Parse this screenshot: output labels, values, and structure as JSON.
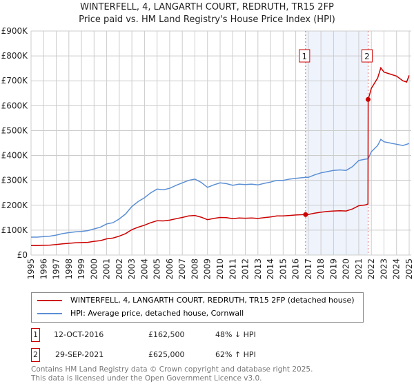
{
  "chart_data": {
    "type": "line",
    "title": "WINTERFELL, 4, LANGARTH COURT, REDRUTH, TR15 2FP",
    "subtitle": "Price paid vs. HM Land Registry's House Price Index (HPI)",
    "xlim": [
      1995,
      2025
    ],
    "ylim": [
      0,
      900000
    ],
    "x_ticks": [
      "1995",
      "1996",
      "1997",
      "1998",
      "1999",
      "2000",
      "2001",
      "2002",
      "2003",
      "2004",
      "2005",
      "2006",
      "2007",
      "2008",
      "2009",
      "2010",
      "2011",
      "2012",
      "2013",
      "2014",
      "2015",
      "2016",
      "2017",
      "2018",
      "2019",
      "2020",
      "2021",
      "2022",
      "2023",
      "2024",
      "2025"
    ],
    "y_ticks": [
      {
        "v": 0,
        "label": "£0"
      },
      {
        "v": 100000,
        "label": "£100K"
      },
      {
        "v": 200000,
        "label": "£200K"
      },
      {
        "v": 300000,
        "label": "£300K"
      },
      {
        "v": 400000,
        "label": "£400K"
      },
      {
        "v": 500000,
        "label": "£500K"
      },
      {
        "v": 600000,
        "label": "£600K"
      },
      {
        "v": 700000,
        "label": "£700K"
      },
      {
        "v": 800000,
        "label": "£800K"
      },
      {
        "v": 900000,
        "label": "£900K"
      }
    ],
    "grid": true,
    "shaded_range": [
      2016.78,
      2021.74
    ],
    "series": [
      {
        "name": "WINTERFELL, 4, LANGARTH COURT, REDRUTH, TR15 2FP (detached house)",
        "color": "#cc0000",
        "x": [
          1995,
          1995.5,
          1996,
          1996.5,
          1997,
          1997.5,
          1998,
          1998.5,
          1999,
          1999.5,
          2000,
          2000.5,
          2001,
          2001.5,
          2002,
          2002.5,
          2003,
          2003.5,
          2004,
          2004.5,
          2005,
          2005.5,
          2006,
          2006.5,
          2007,
          2007.5,
          2008,
          2008.5,
          2009,
          2009.5,
          2010,
          2010.5,
          2011,
          2011.5,
          2012,
          2012.5,
          2013,
          2013.5,
          2014,
          2014.5,
          2015,
          2015.5,
          2016,
          2016.78,
          2017,
          2017.5,
          2018,
          2018.5,
          2019,
          2019.5,
          2020,
          2020.5,
          2021,
          2021.5,
          2021.73,
          2021.75,
          2022,
          2022.5,
          2022.75,
          2023,
          2023.5,
          2024,
          2024.5,
          2024.8,
          2025
        ],
        "y": [
          38000,
          38000,
          39000,
          40000,
          42000,
          45000,
          47000,
          49000,
          50000,
          51000,
          55000,
          58000,
          65000,
          68000,
          76000,
          86000,
          102000,
          112000,
          120000,
          130000,
          138000,
          137000,
          140000,
          146000,
          151000,
          157000,
          159000,
          152000,
          142000,
          147000,
          151000,
          150000,
          146000,
          149000,
          148000,
          149000,
          147000,
          150000,
          153000,
          157000,
          157000,
          159000,
          161000,
          162500,
          163000,
          168000,
          172000,
          175000,
          177000,
          178000,
          177000,
          185000,
          198000,
          201000,
          205000,
          625000,
          670000,
          711000,
          752000,
          735000,
          727000,
          719000,
          700000,
          695000,
          722000
        ]
      },
      {
        "name": "HPI: Average price, detached house, Cornwall",
        "color": "#5b8fd4",
        "x": [
          1995,
          1995.5,
          1996,
          1996.5,
          1997,
          1997.5,
          1998,
          1998.5,
          1999,
          1999.5,
          2000,
          2000.5,
          2001,
          2001.5,
          2002,
          2002.5,
          2003,
          2003.5,
          2004,
          2004.5,
          2005,
          2005.5,
          2006,
          2006.5,
          2007,
          2007.5,
          2008,
          2008.5,
          2009,
          2009.5,
          2010,
          2010.5,
          2011,
          2011.5,
          2012,
          2012.5,
          2013,
          2013.5,
          2014,
          2014.5,
          2015,
          2015.5,
          2016,
          2016.78,
          2017,
          2017.5,
          2018,
          2018.5,
          2019,
          2019.5,
          2020,
          2020.5,
          2021,
          2021.5,
          2021.74,
          2022,
          2022.5,
          2022.75,
          2023,
          2023.5,
          2024,
          2024.5,
          2025
        ],
        "y": [
          72000,
          72000,
          74000,
          76000,
          80000,
          86000,
          90000,
          93000,
          95000,
          98000,
          105000,
          112000,
          125000,
          130000,
          145000,
          165000,
          195000,
          215000,
          230000,
          250000,
          265000,
          262000,
          268000,
          280000,
          290000,
          300000,
          305000,
          292000,
          272000,
          282000,
          290000,
          287000,
          280000,
          285000,
          283000,
          285000,
          282000,
          288000,
          293000,
          300000,
          300000,
          305000,
          308000,
          312000,
          312000,
          322000,
          330000,
          335000,
          340000,
          342000,
          340000,
          355000,
          380000,
          385000,
          387000,
          415000,
          440000,
          465000,
          455000,
          450000,
          445000,
          440000,
          448000
        ]
      }
    ],
    "sales": [
      {
        "id": "1",
        "date": "12-OCT-2016",
        "x": 2016.78,
        "price": "£162,500",
        "value": 162500,
        "hpi": "48% ↓ HPI"
      },
      {
        "id": "2",
        "date": "29-SEP-2021",
        "x": 2021.74,
        "price": "£625,000",
        "value": 625000,
        "hpi": "62% ↑ HPI"
      }
    ]
  },
  "footer": {
    "line1": "Contains HM Land Registry data © Crown copyright and database right 2025.",
    "line2": "This data is licensed under the Open Government Licence v3.0."
  }
}
